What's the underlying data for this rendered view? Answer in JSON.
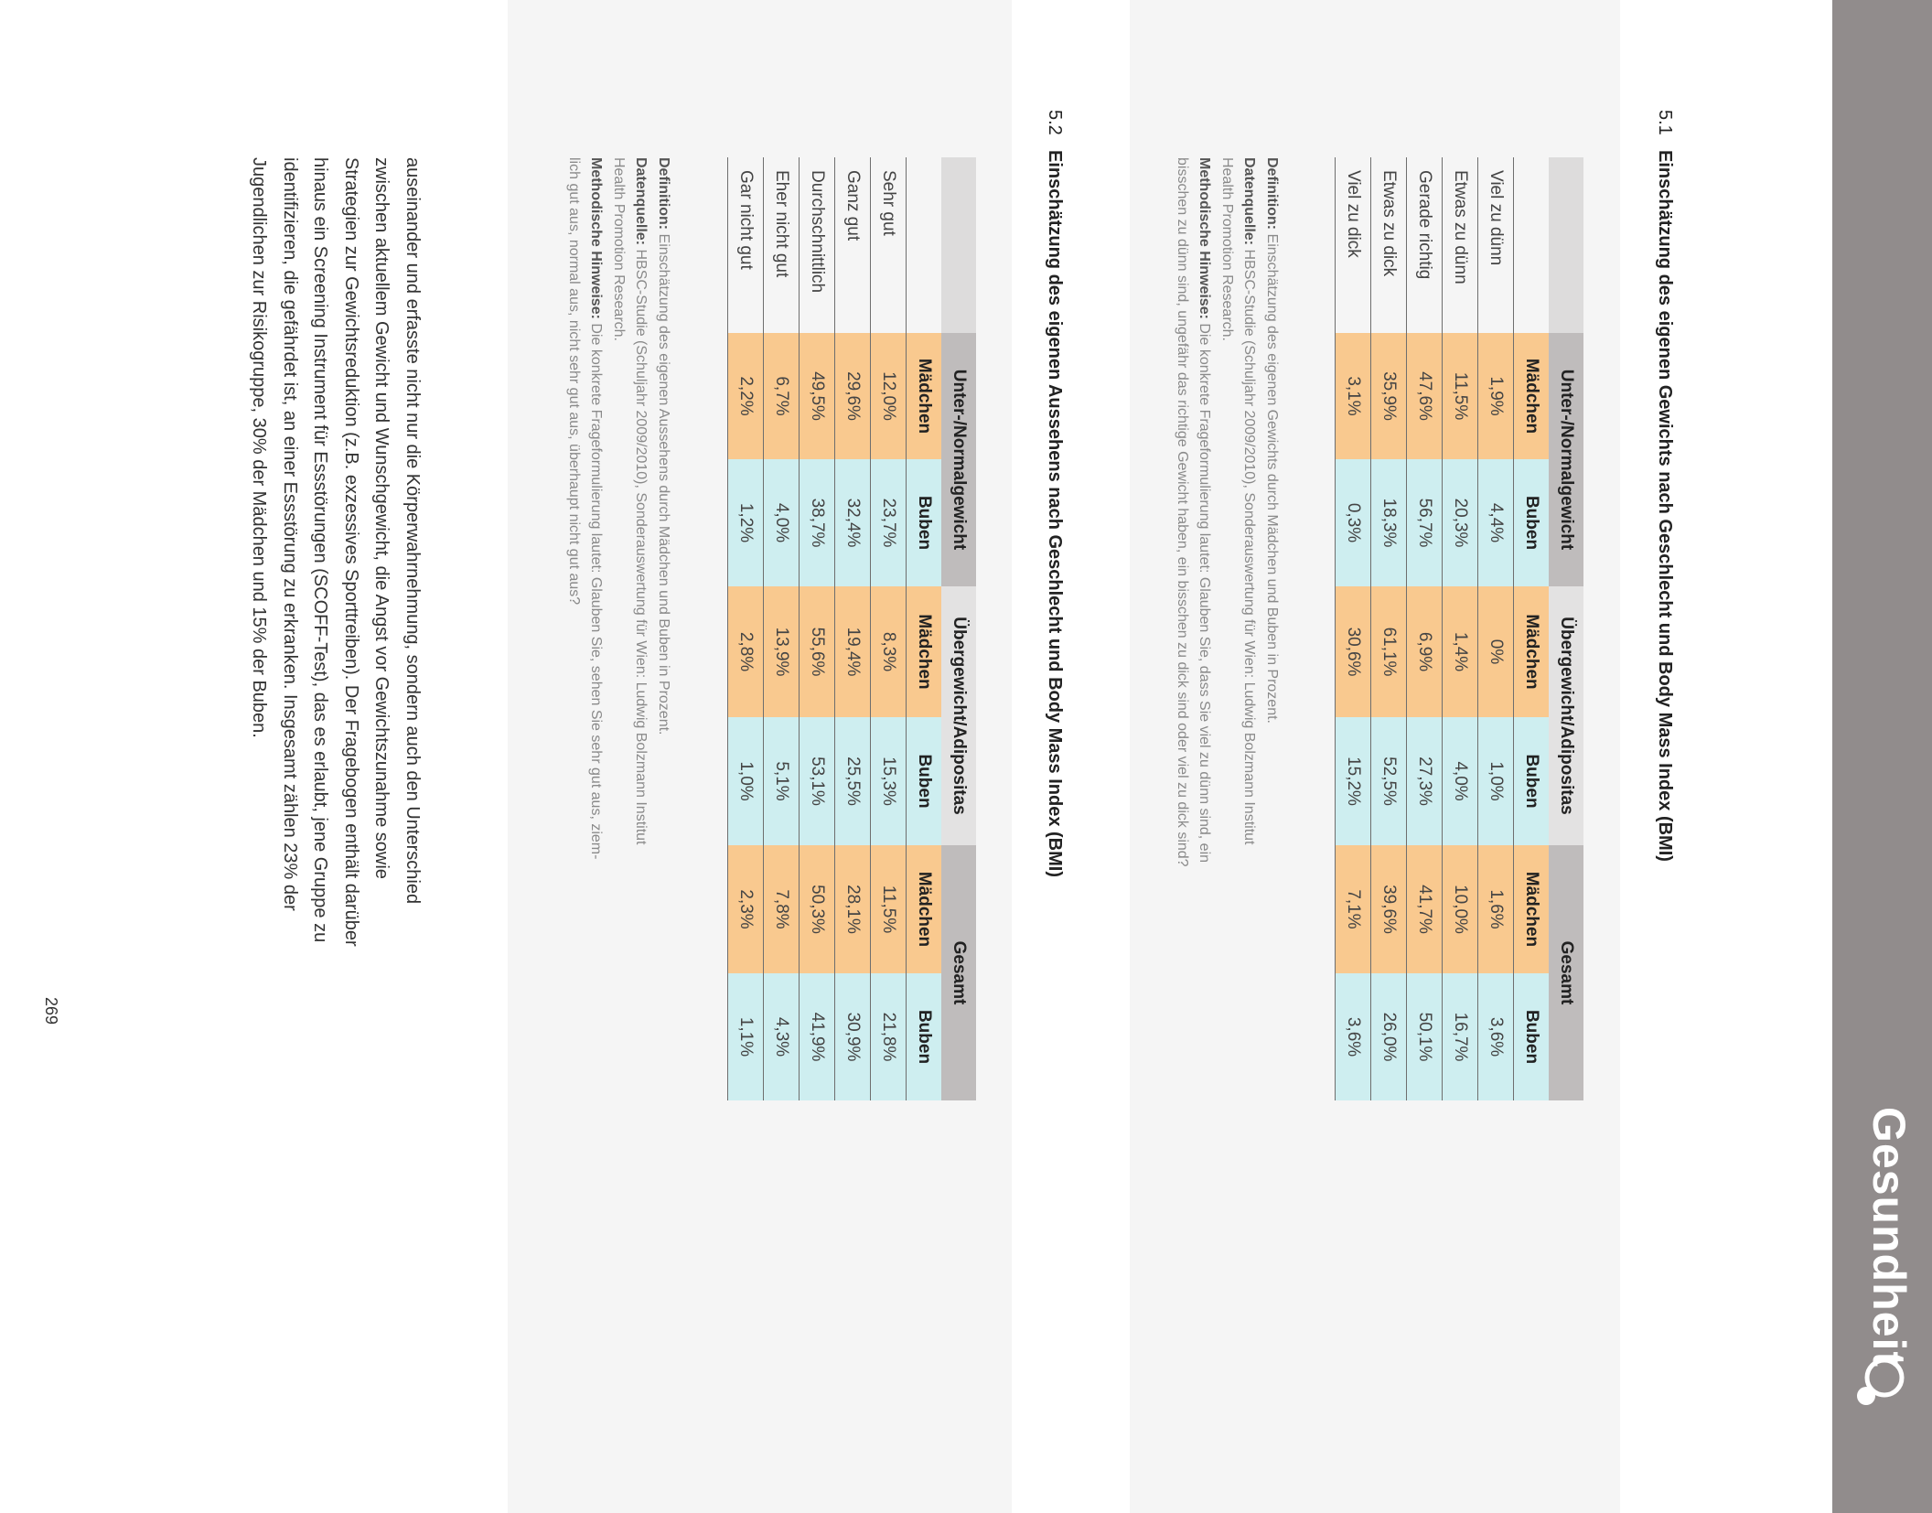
{
  "header": {
    "section_title": "Gesundheit",
    "logo_icon": "circle-dot-logo",
    "bar_color": "#918c8c"
  },
  "colors": {
    "girls": "#f9c98f",
    "boys": "#ceeef0",
    "header_dark": "#bfbcbc",
    "header_light": "#e3e2e2",
    "panel": "#f5f5f5"
  },
  "section1": {
    "number": "5.1",
    "title": "Einschätzung des eigenen Gewichts nach Geschlecht und Body Mass Index (BMI)",
    "groups": [
      "Unter-/Normalgewicht",
      "Übergewicht/Adipositas",
      "Gesamt"
    ],
    "subheaders": [
      "Mädchen",
      "Buben",
      "Mädchen",
      "Buben",
      "Mädchen",
      "Buben"
    ],
    "rows": [
      {
        "label": "Viel zu dünn",
        "values": [
          "1,9%",
          "4,4%",
          "0%",
          "1,0%",
          "1,6%",
          "3,6%"
        ]
      },
      {
        "label": "Etwas zu dünn",
        "values": [
          "11,5%",
          "20,3%",
          "1,4%",
          "4,0%",
          "10,0%",
          "16,7%"
        ]
      },
      {
        "label": "Gerade richtig",
        "values": [
          "47,6%",
          "56,7%",
          "6,9%",
          "27,3%",
          "41,7%",
          "50,1%"
        ]
      },
      {
        "label": "Etwas zu dick",
        "values": [
          "35,9%",
          "18,3%",
          "61,1%",
          "52,5%",
          "39,6%",
          "26,0%"
        ]
      },
      {
        "label": "Viel zu dick",
        "values": [
          "3,1%",
          "0,3%",
          "30,6%",
          "15,2%",
          "7,1%",
          "3,6%"
        ]
      }
    ],
    "notes": [
      {
        "label": "Definition:",
        "text": " Einschätzung des eigenen Gewichts durch Mädchen und Buben in Prozent."
      },
      {
        "label": "Datenquelle:",
        "text": " HBSC-Studie (Schuljahr 2009/2010), Sonderauswertung für Wien: Ludwig Bolzmann Institut"
      },
      {
        "label": "",
        "text": "Health Promotion Research."
      },
      {
        "label": "Methodische Hinweise:",
        "text": " Die konkrete Frageformulierung lautet: Glauben Sie, dass Sie viel zu dünn sind, ein"
      },
      {
        "label": "",
        "text": "bisschen zu dünn sind, ungefähr das richtige Gewicht haben, ein bisschen zu dick sind oder viel zu dick sind?"
      }
    ]
  },
  "section2": {
    "number": "5.2",
    "title": "Einschätzung des eigenen Aussehens nach Geschlecht und Body Mass Index (BMI)",
    "groups": [
      "Unter-/Normalgewicht",
      "Übergewicht/Adipositas",
      "Gesamt"
    ],
    "subheaders": [
      "Mädchen",
      "Buben",
      "Mädchen",
      "Buben",
      "Mädchen",
      "Buben"
    ],
    "rows": [
      {
        "label": "Sehr gut",
        "values": [
          "12,0%",
          "23,7%",
          "8,3%",
          "15,3%",
          "11,5%",
          "21,8%"
        ]
      },
      {
        "label": "Ganz gut",
        "values": [
          "29,6%",
          "32,4%",
          "19,4%",
          "25,5%",
          "28,1%",
          "30,9%"
        ]
      },
      {
        "label": "Durchschnittlich",
        "values": [
          "49,5%",
          "38,7%",
          "55,6%",
          "53,1%",
          "50,3%",
          "41,9%"
        ]
      },
      {
        "label": "Eher nicht gut",
        "values": [
          "6,7%",
          "4,0%",
          "13,9%",
          "5,1%",
          "7,8%",
          "4,3%"
        ]
      },
      {
        "label": "Gar nicht gut",
        "values": [
          "2,2%",
          "1,2%",
          "2,8%",
          "1,0%",
          "2,3%",
          "1,1%"
        ]
      }
    ],
    "notes": [
      {
        "label": "Definition:",
        "text": " Einschätzung des eigenen Aussehens durch Mädchen und Buben in Prozent."
      },
      {
        "label": "Datenquelle:",
        "text": " HBSC-Studie (Schuljahr 2009/2010), Sonderauswertung für Wien: Ludwig Bolzmann Institut"
      },
      {
        "label": "",
        "text": "Health Promotion Research."
      },
      {
        "label": "Methodische Hinweise:",
        "text": " Die konkrete Frageformulierung lautet: Glauben Sie, sehen Sie sehr gut aus, ziem-"
      },
      {
        "label": "",
        "text": "lich gut aus, normal aus, nicht sehr gut aus, überhaupt nicht gut aus?"
      }
    ]
  },
  "body_lines": [
    "auseinander und erfasste nicht nur die Körperwahrnehmung, sondern auch den Unterschied",
    "zwischen aktuellem Gewicht und Wunschgewicht, die Angst vor Gewichtszunahme sowie",
    "Strategien zur Gewichtsreduktion (z.B. exzessives Sporttreiben). Der Fragebogen enthält darüber",
    "hinaus ein Screening Instrument für Essstörungen (SCOFF-Test), das es erlaubt, jene Gruppe zu",
    "identifizieren, die gefährdet ist, an einer Essstörung zu erkranken. Insgesamt zählen 23% der",
    "Jugendlichen zur Risikogruppe, 30% der Mädchen und 15% der Buben."
  ],
  "page_number": "269"
}
